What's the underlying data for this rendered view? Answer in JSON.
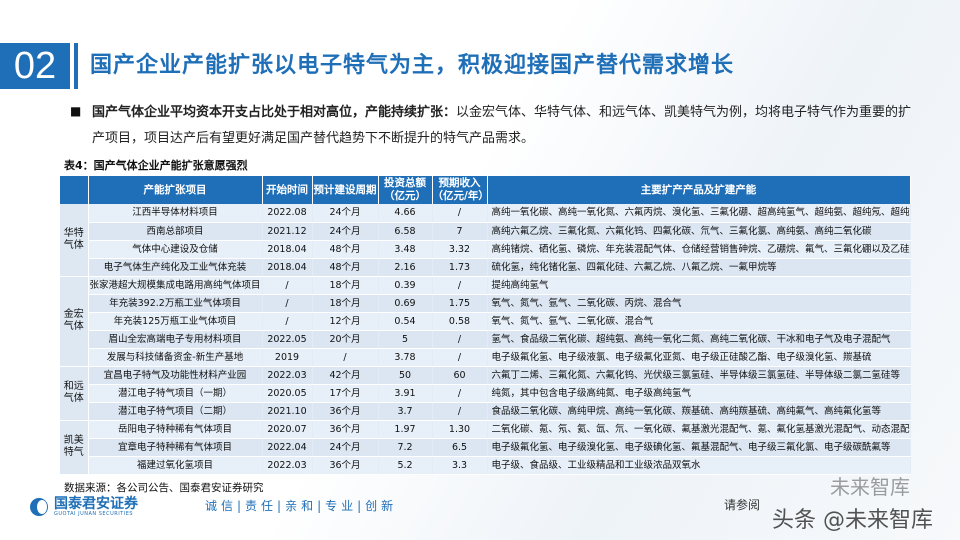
{
  "header": {
    "number": "02",
    "title": "国产企业产能扩张以电子特气为主，积极迎接国产替代需求增长"
  },
  "body": {
    "bullet": "■",
    "bold": "国产气体企业平均资本开支占比处于相对高位，产能持续扩张：",
    "text": "以金宏气体、华特气体、和远气体、凯美特气为例，均将电子特气作为重要的扩产项目，项目达产后有望更好满足国产替代趋势下不断提升的特气产品需求。"
  },
  "table": {
    "caption": "表4：国产气体企业产能扩张意愿强烈",
    "headers": [
      "",
      "产能扩张项目",
      "开始时间",
      "预计建设周期",
      "投资总额（亿元）",
      "预期收入（亿元/年）",
      "主要扩产产品及扩建产能"
    ],
    "groups": [
      {
        "name": "华特气体",
        "rows": [
          [
            "江西半导体材料项目",
            "2022.08",
            "24个月",
            "4.66",
            "/",
            "高纯一氧化碳、高纯一氧化氮、六氟丙烷、溴化氢、三氟化硼、超高纯氢气、超纯氨、超纯氖、超纯氦等"
          ],
          [
            "西南总部项目",
            "2021.12",
            "24个月",
            "6.58",
            "7",
            "高纯六氟乙烷、三氟化氮、六氟化钨、四氟化碳、氘气、三氟化氯、高纯氨、高纯二氧化碳"
          ],
          [
            "气体中心建设及仓储",
            "2018.04",
            "48个月",
            "3.48",
            "3.32",
            "高纯锗烷、硒化氢、磷烷、年充装混配气体、仓储经营销售砷烷、乙硼烷、氟气、三氟化硼以及乙硅烷"
          ],
          [
            "电子气体生产纯化及工业气体充装",
            "2018.04",
            "48个月",
            "2.16",
            "1.73",
            "硫化氢，纯化锗化氢、四氟化硅、六氟乙烷、八氟乙烷、一氟甲烷等"
          ]
        ]
      },
      {
        "name": "金宏气体",
        "rows": [
          [
            "张家港超大规模集成电路用高纯气体项目",
            "/",
            "18个月",
            "0.39",
            "/",
            "提纯高纯氢气"
          ],
          [
            "年充装392.2万瓶工业气体项目",
            "/",
            "18个月",
            "0.69",
            "1.75",
            "氧气、氮气、氩气、二氧化碳、丙烷、混合气"
          ],
          [
            "年充装125万瓶工业气体项目",
            "/",
            "12个月",
            "0.54",
            "0.58",
            "氧气、氮气、氩气、二氧化碳、混合气"
          ],
          [
            "眉山全宏高端电子专用材料项目",
            "2022.05",
            "20个月",
            "5",
            "/",
            "氢气、食品级二氧化碳、超纯氨、高纯一氧化二氮、高纯二氧化碳、干冰和电子气及电子混配气"
          ],
          [
            "发展与科技储备资金-新生产基地",
            "2019",
            "/",
            "3.78",
            "/",
            "电子级氟化氢、电子级液氯、电子级氟化亚氮、电子级正硅酸乙酯、电子级溴化氢、羰基硫"
          ]
        ]
      },
      {
        "name": "和远气体",
        "rows": [
          [
            "宜昌电子特气及功能性材料产业园",
            "2022.03",
            "42个月",
            "50",
            "60",
            "六氟丁二烯、三氟化氮、六氟化钨、光伏级三氯氢硅、半导体级三氯氢硅、半导体级二氯二氢硅等"
          ],
          [
            "潜江电子特气项目（一期）",
            "2020.05",
            "17个月",
            "3.91",
            "/",
            "纯氮，其中包含电子级高纯氮、电子级高纯氢气"
          ],
          [
            "潜江电子特气项目（二期）",
            "2021.10",
            "36个月",
            "3.7",
            "/",
            "食品级二氧化碳、高纯甲烷、高纯一氧化碳、羰基硫、高纯羰基硫、高纯氟气、高纯氟化氢等"
          ]
        ]
      },
      {
        "name": "凯美特气",
        "rows": [
          [
            "岳阳电子特种稀有气体项目",
            "2020.07",
            "36个月",
            "1.97",
            "1.30",
            "二氧化碳、氪、氖、氦、氙、氘、一氧化碳、氟基激光混配气、氪、氟化氢基激光混配气、动态混配气等"
          ],
          [
            "宜章电子特种稀有气体项目",
            "2022.04",
            "24个月",
            "7.2",
            "6.5",
            "电子级氟化氢、电子级溴化氢、电子级碘化氢、氟基混配气、电子级三氟化氯、电子级碳酰氟等"
          ],
          [
            "福建过氧化氢项目",
            "2022.03",
            "36个月",
            "5.2",
            "3.3",
            "电子级、食品级、工业级精品和工业级浓品双氧水"
          ]
        ]
      }
    ],
    "source": "数据来源：各公司公告、国泰君安证券研究"
  },
  "footer": {
    "logo_cn": "国泰君安证券",
    "logo_en": "GUOTAI JUNAN SECURITIES",
    "motto": "诚信|责任|亲和|专业|创新",
    "disclaimer": "请参阅",
    "watermark1": "未来智库",
    "watermark2": "头条 @未来智库"
  },
  "colors": {
    "brand_blue": "#1f6fb8",
    "row_light": "#e7eff8",
    "row_dark": "#dbe6f2"
  }
}
